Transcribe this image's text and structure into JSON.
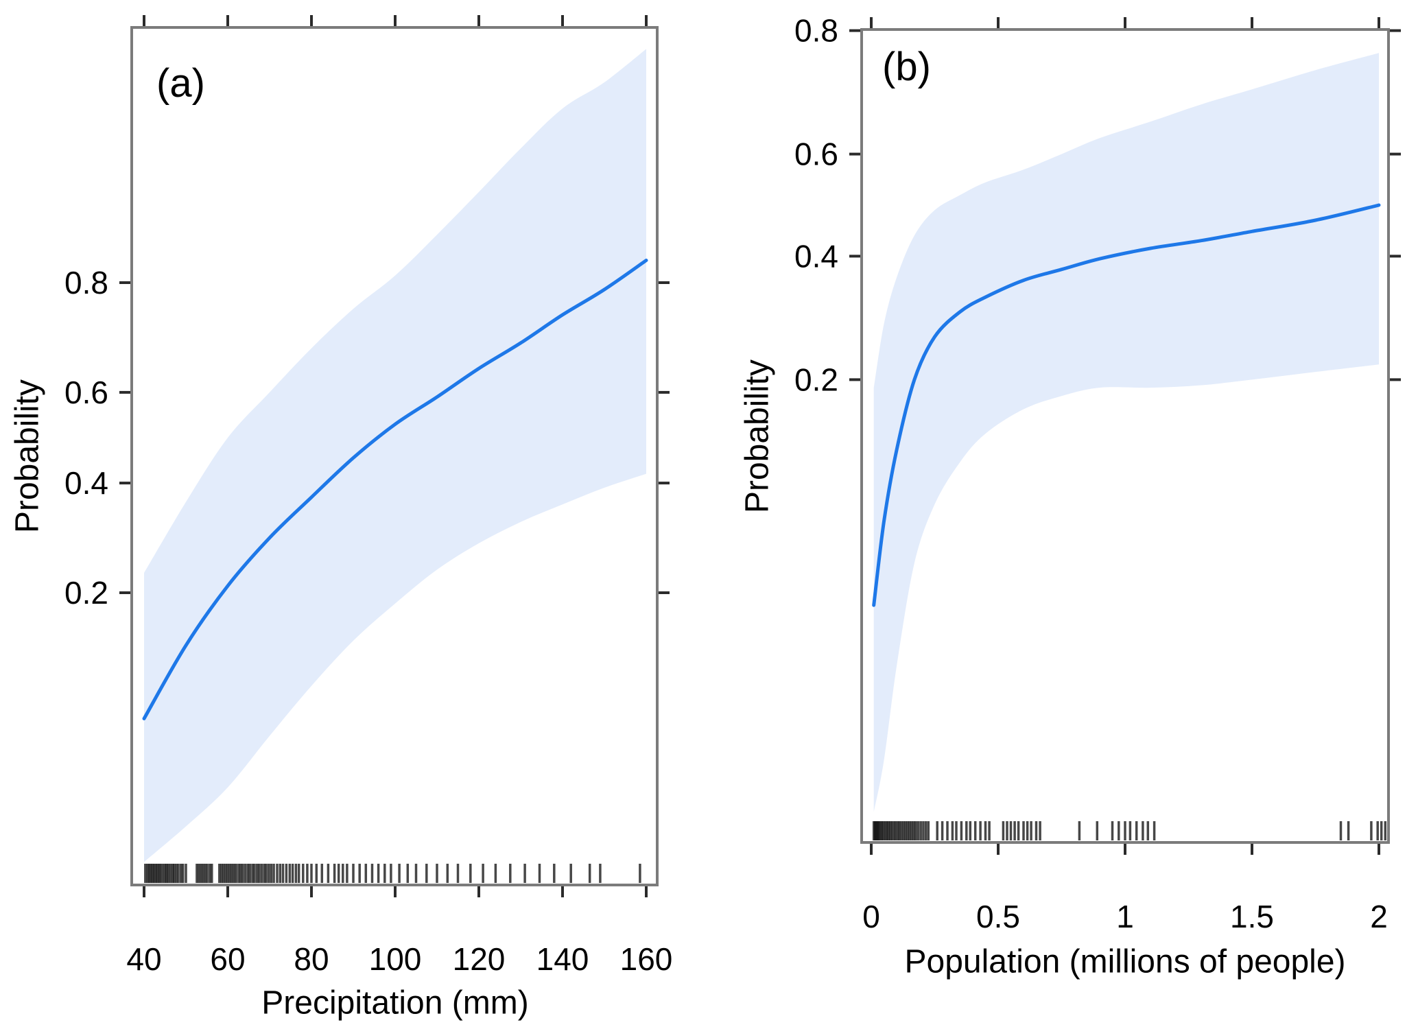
{
  "figure": {
    "background": "#ffffff",
    "line_color": "#1e78e8",
    "band_color": "#e3ecfb",
    "frame_color": "#7b7b7b",
    "tick_color": "#2b2b2b",
    "rug_color": "#000000",
    "text_color": "#000000"
  },
  "chart_data": [
    {
      "type": "line",
      "panel_label": "(a)",
      "xlabel": "Precipitation (mm)",
      "ylabel": "Probability",
      "y_scale": "logit",
      "legend": "none",
      "grid": false,
      "x_ticks": [
        40,
        60,
        80,
        100,
        120,
        140,
        160
      ],
      "x_tick_labels": [
        "40",
        "60",
        "80",
        "100",
        "120",
        "140",
        "160"
      ],
      "y_ticks": [
        0.2,
        0.4,
        0.6,
        0.8
      ],
      "y_tick_labels": [
        "0.2",
        "0.4",
        "0.6",
        "0.8"
      ],
      "xlim": [
        37,
        163
      ],
      "ylim_probability": [
        0.018,
        0.975
      ],
      "series": {
        "x": [
          40,
          50,
          60,
          70,
          80,
          90,
          100,
          110,
          120,
          130,
          140,
          150,
          160
        ],
        "fit": [
          0.075,
          0.135,
          0.21,
          0.29,
          0.37,
          0.455,
          0.53,
          0.59,
          0.65,
          0.7,
          0.75,
          0.79,
          0.83
        ],
        "upper": [
          0.23,
          0.36,
          0.5,
          0.6,
          0.69,
          0.76,
          0.81,
          0.86,
          0.9,
          0.93,
          0.95,
          0.96,
          0.97
        ],
        "lower": [
          0.022,
          0.03,
          0.042,
          0.065,
          0.098,
          0.14,
          0.185,
          0.235,
          0.28,
          0.32,
          0.355,
          0.39,
          0.42
        ]
      },
      "rug": [
        40.3,
        40.8,
        41.2,
        41.6,
        42.0,
        42.4,
        42.8,
        43.2,
        43.6,
        44.0,
        44.5,
        45.0,
        45.4,
        45.8,
        46.3,
        46.8,
        47.2,
        47.7,
        48.2,
        48.8,
        49.3,
        50.0,
        52.6,
        53.1,
        53.6,
        54.1,
        54.6,
        55.1,
        55.7,
        56.2,
        58.0,
        58.5,
        59.0,
        59.5,
        60.0,
        60.5,
        61.0,
        61.5,
        62.0,
        62.6,
        63.1,
        63.6,
        64.2,
        64.8,
        65.3,
        65.9,
        66.4,
        67.0,
        67.5,
        68.1,
        68.7,
        69.2,
        69.8,
        70.4,
        71.0,
        71.8,
        72.5,
        73.2,
        74.0,
        74.8,
        75.5,
        76.3,
        77.0,
        78.0,
        79.0,
        80.0,
        81.2,
        82.5,
        84.0,
        85.5,
        86.5,
        87.5,
        88.5,
        90.0,
        91.5,
        93.0,
        94.5,
        96.0,
        97.5,
        99.0,
        101.0,
        103.0,
        105.0,
        107.5,
        110.0,
        112.5,
        115.0,
        118.0,
        121.0,
        124.0,
        127.5,
        131.0,
        134.5,
        138.0,
        142.0,
        146.5,
        149.0,
        158.5
      ]
    },
    {
      "type": "line",
      "panel_label": "(b)",
      "xlabel": "Population (millions of people)",
      "ylabel": "Probability",
      "y_scale": "logit",
      "legend": "none",
      "grid": false,
      "x_ticks": [
        0,
        0.5,
        1,
        1.5,
        2
      ],
      "x_tick_labels": [
        "0",
        "0.5",
        "1",
        "1.5",
        "2"
      ],
      "y_ticks": [
        0.2,
        0.4,
        0.6,
        0.8
      ],
      "y_tick_labels": [
        "0.2",
        "0.4",
        "0.6",
        "0.8"
      ],
      "xlim": [
        -0.04,
        2.04
      ],
      "ylim_probability": [
        0.006,
        0.8
      ],
      "series": {
        "x": [
          0.01,
          0.05,
          0.1,
          0.17,
          0.25,
          0.35,
          0.45,
          0.6,
          0.75,
          0.9,
          1.1,
          1.3,
          1.5,
          1.75,
          2.0
        ],
        "fit": [
          0.04,
          0.075,
          0.125,
          0.2,
          0.26,
          0.3,
          0.325,
          0.355,
          0.375,
          0.395,
          0.415,
          0.43,
          0.448,
          0.47,
          0.5
        ],
        "upper": [
          0.19,
          0.28,
          0.36,
          0.44,
          0.49,
          0.52,
          0.545,
          0.57,
          0.6,
          0.63,
          0.66,
          0.69,
          0.715,
          0.745,
          0.77
        ],
        "lower": [
          0.008,
          0.012,
          0.025,
          0.055,
          0.085,
          0.115,
          0.14,
          0.165,
          0.18,
          0.19,
          0.19,
          0.193,
          0.2,
          0.21,
          0.22
        ]
      },
      "rug": [
        0.01,
        0.015,
        0.02,
        0.025,
        0.03,
        0.036,
        0.042,
        0.048,
        0.055,
        0.062,
        0.068,
        0.075,
        0.082,
        0.09,
        0.097,
        0.105,
        0.112,
        0.12,
        0.128,
        0.136,
        0.144,
        0.152,
        0.16,
        0.168,
        0.176,
        0.185,
        0.195,
        0.205,
        0.215,
        0.225,
        0.26,
        0.28,
        0.3,
        0.32,
        0.335,
        0.355,
        0.375,
        0.39,
        0.41,
        0.43,
        0.45,
        0.465,
        0.52,
        0.535,
        0.55,
        0.565,
        0.58,
        0.6,
        0.615,
        0.63,
        0.65,
        0.665,
        0.82,
        0.89,
        0.95,
        0.975,
        1.0,
        1.02,
        1.045,
        1.07,
        1.09,
        1.115,
        1.85,
        1.88,
        1.97,
        1.995,
        2.01,
        2.025
      ]
    }
  ]
}
